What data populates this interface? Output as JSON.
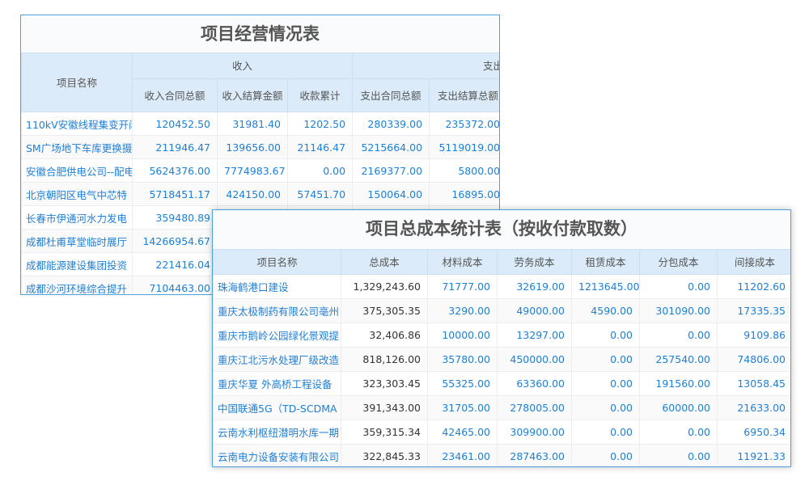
{
  "table1": {
    "title": "项目经营情况表",
    "header": {
      "name": "项目名称",
      "income": "收入",
      "expense": "支出",
      "cols": [
        "收入合同总额",
        "收入结算金额",
        "收款累计",
        "支出合同总额",
        "支出结算总额"
      ]
    },
    "rows": [
      [
        "110kV安徽线程集变开闭",
        "120452.50",
        "31981.40",
        "1202.50",
        "280339.00",
        "235372.00"
      ],
      [
        "SM广场地下车库更换摄",
        "211946.47",
        "139656.00",
        "21146.47",
        "5215664.00",
        "5119019.00"
      ],
      [
        "安徽合肥供电公司--配电",
        "5624376.00",
        "7774983.67",
        "0.00",
        "2169377.00",
        "5800.00"
      ],
      [
        "北京朝阳区电气中芯特",
        "5718451.17",
        "424150.00",
        "57451.70",
        "150064.00",
        "16895.00"
      ],
      [
        "长春市伊通河水力发电",
        "359480.89",
        "",
        "",
        "",
        ""
      ],
      [
        "成都杜甫草堂临时展厅",
        "14266954.67",
        "",
        "",
        "",
        ""
      ],
      [
        "成都能源建设集团投资",
        "221416.04",
        "",
        "",
        "",
        ""
      ],
      [
        "成都沙河环境综合提升",
        "7104463.00",
        "",
        "",
        "",
        ""
      ]
    ]
  },
  "table2": {
    "title": "项目总成本统计表（按收付款取数）",
    "cols": [
      "项目名称",
      "总成本",
      "材料成本",
      "劳务成本",
      "租赁成本",
      "分包成本",
      "间接成本"
    ],
    "rows": [
      [
        "珠海鹤港口建设",
        "1,329,243.60",
        "71777.00",
        "32619.00",
        "1213645.00",
        "0.00",
        "11202.60"
      ],
      [
        "重庆太极制药有限公司亳州",
        "375,305.35",
        "3290.00",
        "49000.00",
        "4590.00",
        "301090.00",
        "17335.35"
      ],
      [
        "重庆市鹅岭公园绿化景观提",
        "32,406.86",
        "10000.00",
        "13297.00",
        "0.00",
        "0.00",
        "9109.86"
      ],
      [
        "重庆江北污水处理厂级改造",
        "818,126.00",
        "35780.00",
        "450000.00",
        "0.00",
        "257540.00",
        "74806.00"
      ],
      [
        "重庆华夏 外高桥工程设备",
        "323,303.45",
        "55325.00",
        "63360.00",
        "0.00",
        "191560.00",
        "13058.45"
      ],
      [
        "中国联通5G（TD-SCDMA",
        "391,343.00",
        "31705.00",
        "278005.00",
        "0.00",
        "60000.00",
        "21633.00"
      ],
      [
        "云南水利枢纽潜明水库一期",
        "359,315.34",
        "42465.00",
        "309900.00",
        "0.00",
        "0.00",
        "6950.34"
      ],
      [
        "云南电力设备安装有限公司",
        "322,845.33",
        "23461.00",
        "287463.00",
        "0.00",
        "0.00",
        "11921.33"
      ]
    ]
  }
}
